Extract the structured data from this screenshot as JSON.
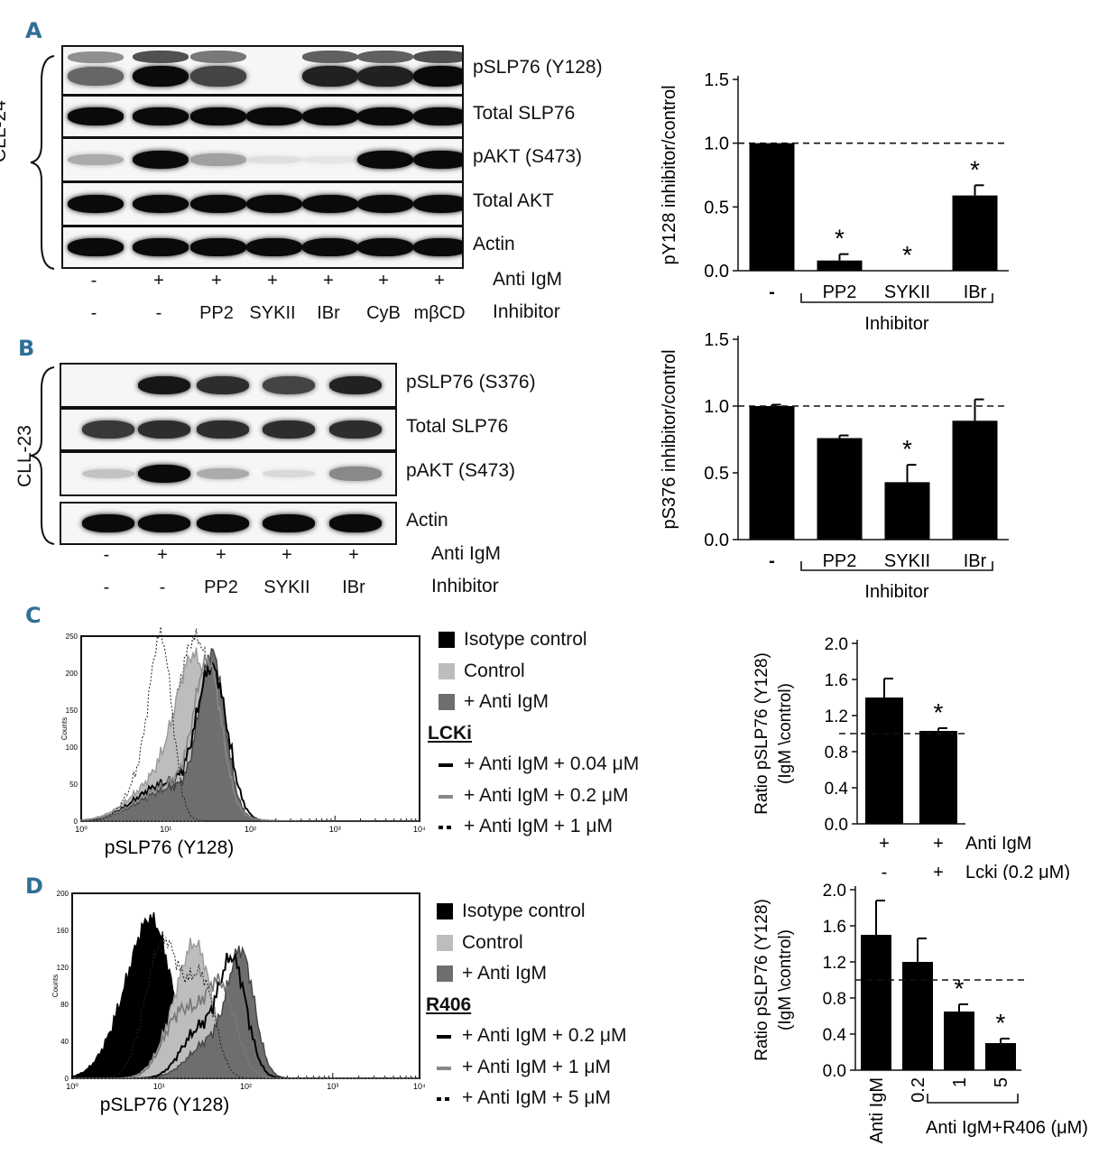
{
  "panels": [
    "A",
    "B",
    "C",
    "D"
  ],
  "panel_a": {
    "side_label": "CLL-24",
    "blot_labels": [
      "pSLP76 (Y128)",
      "Total SLP76",
      "pAKT (S473)",
      "Total AKT",
      "Actin"
    ],
    "row_anti_igm": [
      "-",
      "+",
      "+",
      "+",
      "+",
      "+",
      "+"
    ],
    "row_inhibitor": [
      "-",
      "-",
      "PP2",
      "SYKII",
      "IBr",
      "CyB",
      "mβCD"
    ],
    "row_anti_igm_label": "Anti IgM",
    "row_inhibitor_label": "Inhibitor"
  },
  "panel_b": {
    "side_label": "CLL-23",
    "blot_labels": [
      "pSLP76 (S376)",
      "Total SLP76",
      "pAKT (S473)",
      "Actin"
    ],
    "row_anti_igm": [
      "-",
      "+",
      "+",
      "+",
      "+"
    ],
    "row_inhibitor": [
      "-",
      "-",
      "PP2",
      "SYKII",
      "IBr"
    ],
    "row_anti_igm_label": "Anti IgM",
    "row_inhibitor_label": "Inhibitor"
  },
  "panel_c": {
    "legend": [
      "Isotype control",
      "Control",
      "+ Anti IgM",
      "LCKi",
      "+ Anti IgM + 0.04 μM",
      "+ Anti IgM + 0.2 μM",
      "+ Anti IgM + 1 μM"
    ],
    "xlabel": "pSLP76 (Y128)",
    "ylabel": "Counts",
    "yticks": [
      "0",
      "50",
      "100",
      "150",
      "200",
      "250"
    ],
    "xticks": [
      "10⁰",
      "10¹",
      "10²",
      "10³",
      "10⁴"
    ]
  },
  "panel_d": {
    "legend": [
      "Isotype control",
      "Control",
      "+ Anti IgM",
      "R406",
      "+ Anti IgM + 0.2 μM",
      "+ Anti IgM + 1 μM",
      "+ Anti IgM + 5 μM"
    ],
    "xlabel": "pSLP76 (Y128)",
    "ylabel": "Counts",
    "yticks": [
      "0",
      "40",
      "80",
      "120",
      "160",
      "200"
    ],
    "xticks": [
      "10⁰",
      "10¹",
      "10²",
      "10³",
      "10⁴"
    ]
  },
  "chart_data": [
    {
      "type": "bar",
      "id": "bar_a",
      "categories": [
        "-",
        "PP2",
        "SYKII",
        "IBr"
      ],
      "values": [
        1.0,
        0.08,
        0.0,
        0.59
      ],
      "errors": [
        0,
        0.05,
        0,
        0.08
      ],
      "significant": [
        false,
        true,
        true,
        true
      ],
      "ylabel": "pY128 inhibitor/control",
      "ylim": [
        0,
        1.5
      ],
      "yticks": [
        "0.0",
        "0.5",
        "1.0",
        "1.5"
      ],
      "reference_line": 1.0,
      "group_label": "Inhibitor"
    },
    {
      "type": "bar",
      "id": "bar_b",
      "categories": [
        "-",
        "PP2",
        "SYKII",
        "IBr"
      ],
      "values": [
        1.0,
        0.76,
        0.43,
        0.89
      ],
      "errors": [
        0.01,
        0.02,
        0.13,
        0.16
      ],
      "significant": [
        false,
        false,
        true,
        false
      ],
      "ylabel": "pS376 inhibitor/control",
      "ylim": [
        0,
        1.5
      ],
      "yticks": [
        "0.0",
        "0.5",
        "1.0",
        "1.5"
      ],
      "reference_line": 1.0,
      "group_label": "Inhibitor"
    },
    {
      "type": "bar",
      "id": "bar_c",
      "categories": [
        "+",
        "+"
      ],
      "row2": [
        "-",
        "+"
      ],
      "row_labels": [
        "Anti IgM",
        "Lcki (0.2 μM)"
      ],
      "values": [
        1.4,
        1.03
      ],
      "errors": [
        0.21,
        0.03
      ],
      "significant": [
        false,
        true
      ],
      "ylabel": "Ratio pSLP76 (Y128)",
      "ylabel2": "(IgM \\control)",
      "ylim": [
        0,
        2.0
      ],
      "yticks": [
        "0.0",
        "0.4",
        "0.8",
        "1.2",
        "1.6",
        "2.0"
      ],
      "reference_line": 1.0
    },
    {
      "type": "bar",
      "id": "bar_d",
      "categories": [
        "Anti IgM",
        "0.2",
        "1",
        "5"
      ],
      "values": [
        1.5,
        1.2,
        0.65,
        0.3
      ],
      "errors": [
        0.38,
        0.26,
        0.08,
        0.05
      ],
      "significant": [
        false,
        false,
        true,
        true
      ],
      "ylabel": "Ratio pSLP76 (Y128)",
      "ylabel2": "(IgM \\control)",
      "ylim": [
        0,
        2.0
      ],
      "yticks": [
        "0.0",
        "0.4",
        "0.8",
        "1.2",
        "1.6",
        "2.0"
      ],
      "reference_line": 1.0,
      "group_label": "Anti IgM+R406 (μM)"
    }
  ]
}
